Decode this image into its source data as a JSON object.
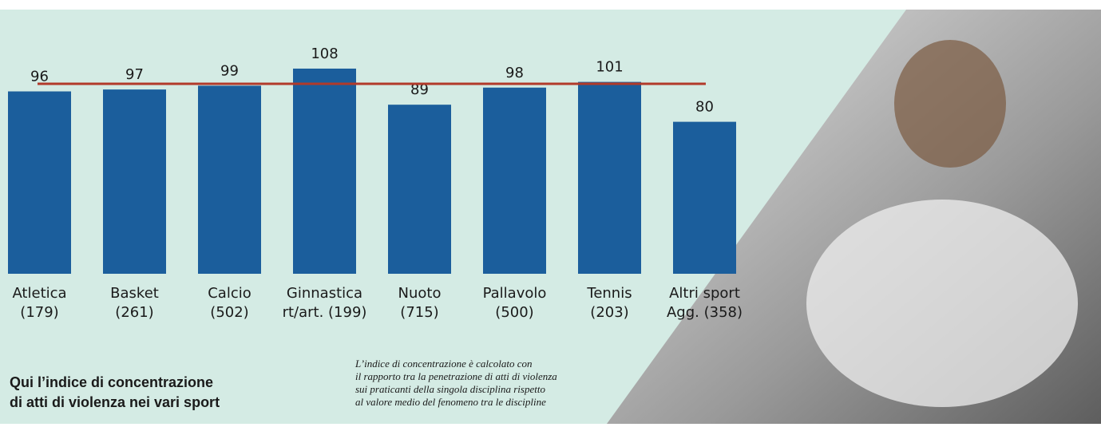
{
  "chart_data": {
    "type": "bar",
    "title": [
      "Qui l’indice di concentrazione",
      "di atti di violenza nei vari sport"
    ],
    "note": [
      "L’indice di concentrazione è calcolato con",
      "il rapporto tra la penetrazione di atti di violenza",
      "sui praticanti della singola disciplina rispetto",
      "al valore medio del fenomeno tra le discipline"
    ],
    "categories": [
      [
        "Atletica",
        "(179)"
      ],
      [
        "Basket",
        "(261)"
      ],
      [
        "Calcio",
        "(502)"
      ],
      [
        "Ginnastica",
        "rt/art. (199)"
      ],
      [
        "Nuoto",
        "(715)"
      ],
      [
        "Pallavolo",
        "(500)"
      ],
      [
        "Tennis",
        "(203)"
      ],
      [
        "Altri sport",
        "Agg. (358)"
      ]
    ],
    "values": [
      96,
      97,
      99,
      108,
      89,
      98,
      101,
      80
    ],
    "color": "#1b5e9c",
    "reference_line": {
      "value": 100,
      "color": "#b23a2a"
    }
  }
}
